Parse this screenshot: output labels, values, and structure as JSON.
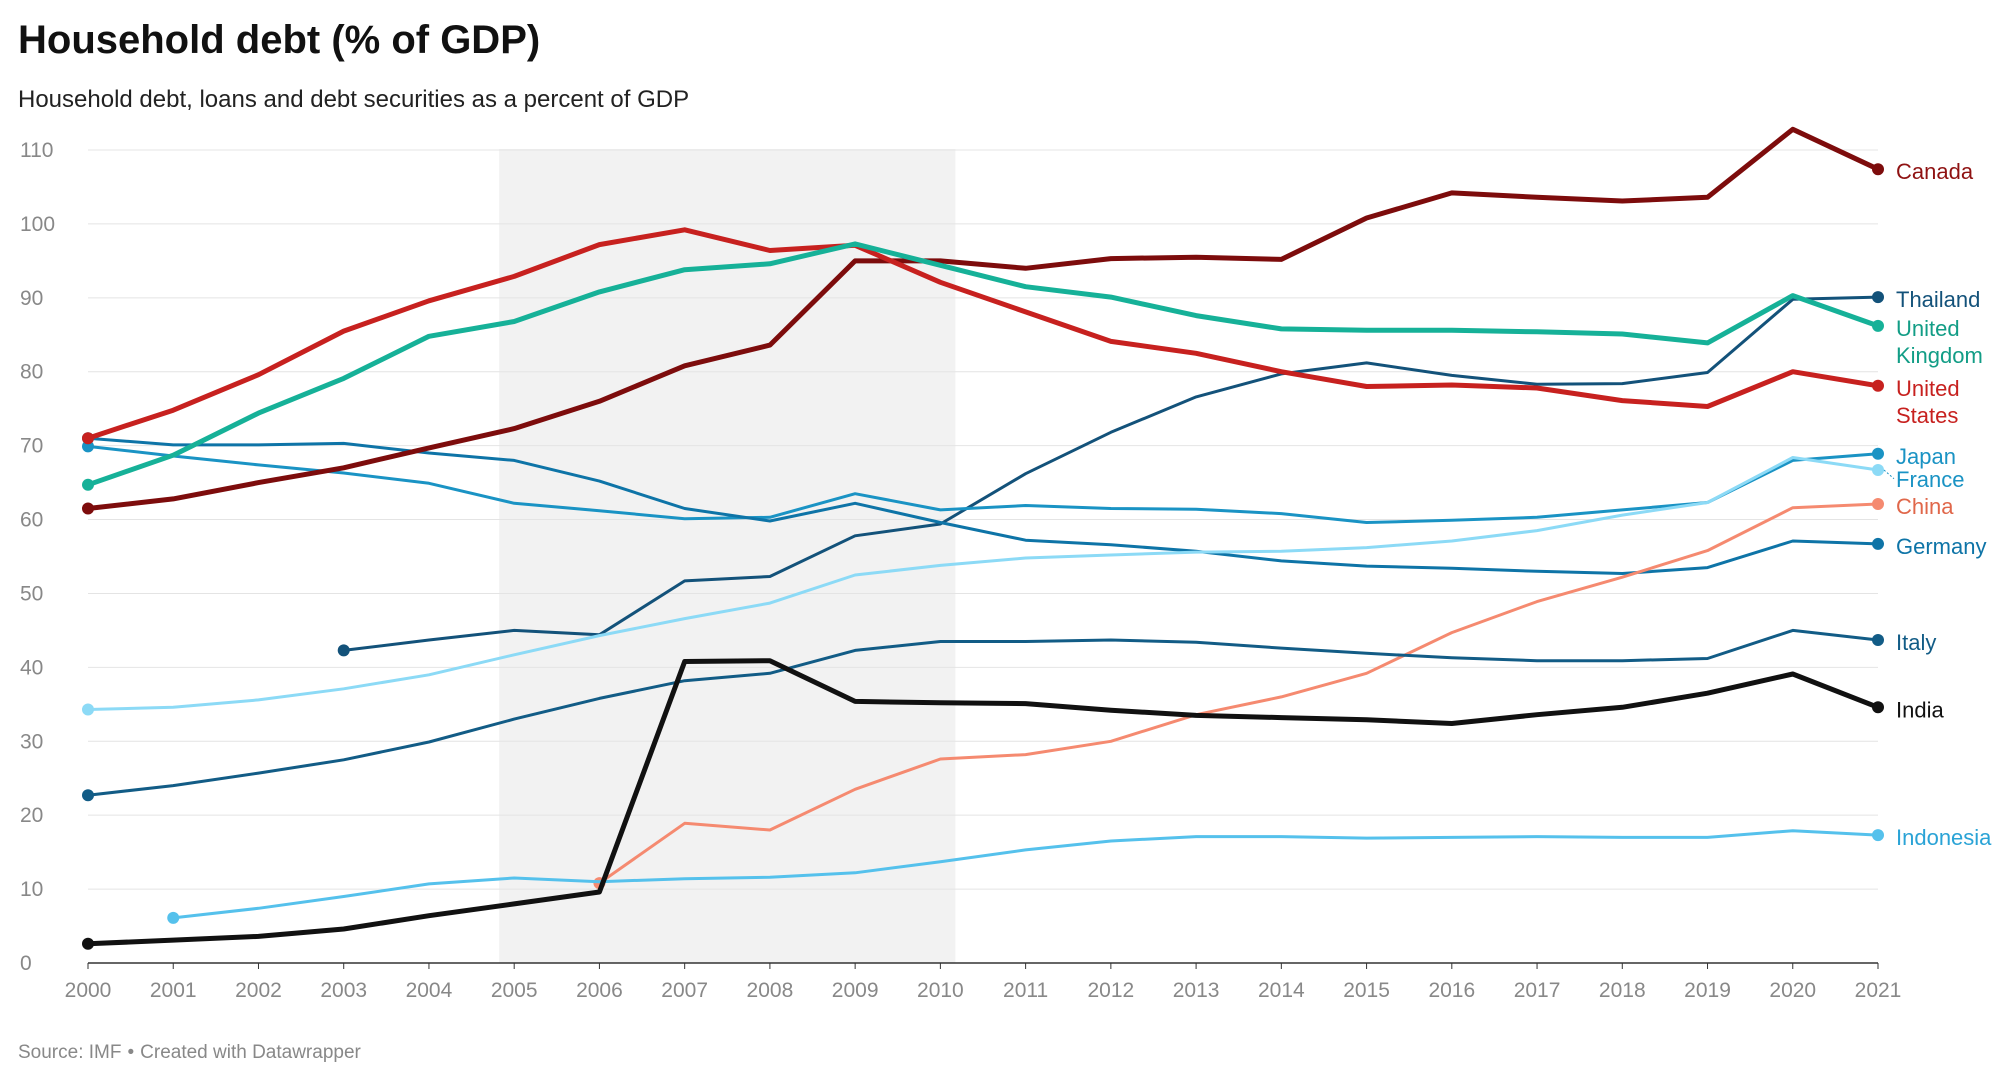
{
  "title": "Household debt (% of GDP)",
  "subtitle": "Household debt, loans and debt securities as a percent of GDP",
  "source": {
    "label": "Source: IMF",
    "separator": "•",
    "credit": "Created with Datawrapper"
  },
  "chart_data": {
    "type": "line",
    "x": [
      2000,
      2001,
      2002,
      2003,
      2004,
      2005,
      2006,
      2007,
      2008,
      2009,
      2010,
      2011,
      2012,
      2013,
      2014,
      2015,
      2016,
      2017,
      2018,
      2019,
      2020,
      2021
    ],
    "ylim": [
      0,
      110
    ],
    "yticks": [
      0,
      10,
      20,
      30,
      40,
      50,
      60,
      70,
      80,
      90,
      100,
      110
    ],
    "grid": true,
    "shaded_range": [
      2005,
      2010
    ],
    "series": [
      {
        "name": "Canada",
        "color": "#7d0c0c",
        "width": 5,
        "values": [
          61.5,
          62.8,
          65.0,
          67.0,
          69.7,
          72.3,
          76.0,
          80.8,
          83.6,
          95.0,
          95.0,
          94.0,
          95.3,
          95.5,
          95.2,
          100.8,
          104.2,
          103.6,
          103.1,
          103.6,
          112.8,
          107.4
        ]
      },
      {
        "name": "United States",
        "color": "#c7211f",
        "width": 5,
        "values": [
          71.0,
          74.8,
          79.6,
          85.5,
          89.6,
          92.9,
          97.2,
          99.2,
          96.4,
          97.1,
          92.1,
          88.1,
          84.1,
          82.5,
          80.0,
          78.0,
          78.2,
          77.8,
          76.1,
          75.3,
          80.0,
          78.1
        ]
      },
      {
        "name": "United Kingdom",
        "color": "#16b198",
        "width": 5,
        "values": [
          64.7,
          68.7,
          74.4,
          79.1,
          84.8,
          86.8,
          90.8,
          93.8,
          94.6,
          97.3,
          94.4,
          91.5,
          90.1,
          87.6,
          85.8,
          85.6,
          85.6,
          85.4,
          85.1,
          83.9,
          90.3,
          86.2
        ]
      },
      {
        "name": "Thailand",
        "color": "#13527a",
        "width": 3,
        "values": [
          null,
          null,
          null,
          42.3,
          43.7,
          45.0,
          44.4,
          51.7,
          52.3,
          57.8,
          59.4,
          66.2,
          71.8,
          76.6,
          79.7,
          81.2,
          79.5,
          78.3,
          78.4,
          79.9,
          89.8,
          90.1
        ]
      },
      {
        "name": "Japan",
        "color": "#1a93c4",
        "width": 3,
        "values": [
          69.9,
          68.6,
          67.4,
          66.3,
          64.9,
          62.2,
          61.2,
          60.1,
          60.3,
          63.5,
          61.3,
          61.9,
          61.5,
          61.4,
          60.8,
          59.6,
          59.9,
          60.3,
          61.3,
          62.3,
          68.0,
          68.9
        ]
      },
      {
        "name": "Germany",
        "color": "#0e74a7",
        "width": 3,
        "values": [
          71.0,
          70.1,
          70.1,
          70.3,
          69.0,
          68.0,
          65.2,
          61.5,
          59.8,
          62.2,
          59.6,
          57.2,
          56.6,
          55.7,
          54.4,
          53.7,
          53.4,
          53.0,
          52.7,
          53.5,
          57.1,
          56.7
        ]
      },
      {
        "name": "France",
        "color": "#8cdaf6",
        "width": 3,
        "values": [
          34.3,
          34.6,
          35.6,
          37.1,
          39.0,
          41.7,
          44.3,
          46.6,
          48.7,
          52.5,
          53.8,
          54.8,
          55.2,
          55.6,
          55.7,
          56.2,
          57.1,
          58.5,
          60.6,
          62.3,
          68.4,
          66.7
        ]
      },
      {
        "name": "China",
        "color": "#f58a70",
        "width": 3,
        "values": [
          null,
          null,
          null,
          null,
          null,
          null,
          10.8,
          18.9,
          18.0,
          23.5,
          27.6,
          28.2,
          30.0,
          33.6,
          36.0,
          39.2,
          44.7,
          48.9,
          52.2,
          55.8,
          61.6,
          62.1
        ]
      },
      {
        "name": "Italy",
        "color": "#125c86",
        "width": 3,
        "values": [
          22.7,
          24.0,
          25.7,
          27.5,
          29.9,
          33.0,
          35.8,
          38.2,
          39.2,
          42.3,
          43.5,
          43.5,
          43.7,
          43.4,
          42.6,
          41.9,
          41.3,
          40.9,
          40.9,
          41.2,
          45.0,
          43.7
        ]
      },
      {
        "name": "India",
        "color": "#111111",
        "width": 5,
        "values": [
          2.6,
          3.1,
          3.6,
          4.6,
          6.4,
          8.0,
          9.6,
          40.8,
          40.9,
          35.4,
          35.2,
          35.1,
          34.2,
          33.5,
          33.2,
          32.9,
          32.4,
          33.6,
          34.6,
          36.5,
          39.1,
          34.6
        ]
      },
      {
        "name": "Indonesia",
        "color": "#55c1ec",
        "width": 3,
        "values": [
          null,
          6.1,
          7.4,
          9.0,
          10.7,
          11.5,
          11.0,
          11.4,
          11.6,
          12.2,
          13.7,
          15.3,
          16.5,
          17.1,
          17.1,
          16.9,
          17.0,
          17.1,
          17.0,
          17.0,
          17.9,
          17.3
        ]
      }
    ],
    "end_labels": [
      {
        "series": "Canada",
        "lines": [
          "Canada"
        ],
        "color": "#8f1212"
      },
      {
        "series": "Thailand",
        "lines": [
          "Thailand"
        ],
        "color": "#13527a"
      },
      {
        "series": "United Kingdom",
        "lines": [
          "United",
          "Kingdom"
        ],
        "color": "#129d86"
      },
      {
        "series": "United States",
        "lines": [
          "United",
          "States"
        ],
        "color": "#c7211f"
      },
      {
        "series": "Japan",
        "lines": [
          "Japan"
        ],
        "color": "#1a93c4"
      },
      {
        "series": "France",
        "lines": [
          "France"
        ],
        "color": "#1a93c4"
      },
      {
        "series": "China",
        "lines": [
          "China"
        ],
        "color": "#e0674a"
      },
      {
        "series": "Germany",
        "lines": [
          "Germany"
        ],
        "color": "#0e74a7"
      },
      {
        "series": "Italy",
        "lines": [
          "Italy"
        ],
        "color": "#125c86"
      },
      {
        "series": "India",
        "lines": [
          "India"
        ],
        "color": "#111111"
      },
      {
        "series": "Indonesia",
        "lines": [
          "Indonesia"
        ],
        "color": "#2aa3d6"
      }
    ]
  }
}
